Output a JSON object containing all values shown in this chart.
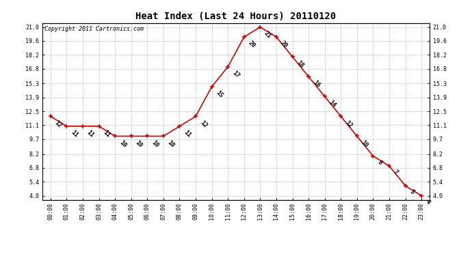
{
  "title": "Heat Index (Last 24 Hours) 20110120",
  "copyright": "Copyright 2011 Cartronics.com",
  "hours": [
    0,
    1,
    2,
    3,
    4,
    5,
    6,
    7,
    8,
    9,
    10,
    11,
    12,
    13,
    14,
    15,
    16,
    17,
    18,
    19,
    20,
    21,
    22,
    23
  ],
  "x_labels": [
    "00:00",
    "01:00",
    "02:00",
    "03:00",
    "04:00",
    "05:00",
    "06:00",
    "07:00",
    "08:00",
    "09:00",
    "10:00",
    "11:00",
    "12:00",
    "13:00",
    "14:00",
    "15:00",
    "16:00",
    "17:00",
    "18:00",
    "19:00",
    "20:00",
    "21:00",
    "22:00",
    "23:00"
  ],
  "values": [
    12,
    11,
    11,
    11,
    10,
    10,
    10,
    10,
    11,
    12,
    15,
    17,
    20,
    21,
    20,
    18,
    16,
    14,
    12,
    10,
    8,
    7,
    5,
    4
  ],
  "y_ticks": [
    4.0,
    5.4,
    6.8,
    8.2,
    9.7,
    11.1,
    12.5,
    13.9,
    15.3,
    16.8,
    18.2,
    19.6,
    21.0
  ],
  "ylim": [
    3.6,
    21.4
  ],
  "line_color": "#cc0000",
  "marker_color": "#cc0000",
  "bg_color": "#ffffff",
  "grid_color": "#bbbbbb",
  "title_fontsize": 10,
  "copyright_fontsize": 6,
  "label_fontsize": 6,
  "annotation_fontsize": 6.5
}
